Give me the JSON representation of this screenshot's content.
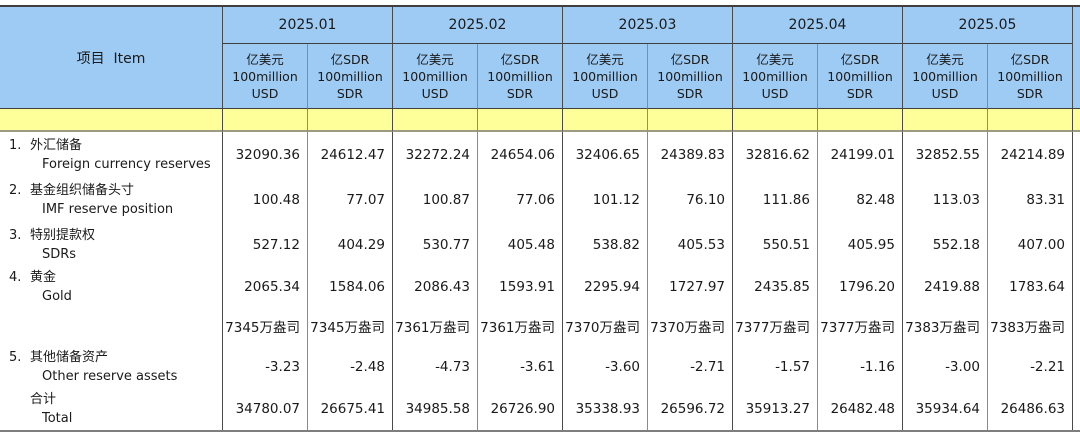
{
  "header": {
    "item": "项目  Item",
    "months": [
      "2025.01",
      "2025.02",
      "2025.03",
      "2025.04",
      "2025.05"
    ],
    "usd_unit": "亿美元\n100million\nUSD",
    "sdr_unit": "亿SDR\n100million\nSDR"
  },
  "rows": [
    {
      "no": "1.",
      "cn": "外汇储备",
      "en": "Foreign currency reserves",
      "values": [
        "32090.36",
        "24612.47",
        "32272.24",
        "24654.06",
        "32406.65",
        "24389.83",
        "32816.62",
        "24199.01",
        "32852.55",
        "24214.89"
      ]
    },
    {
      "no": "2.",
      "cn": "基金组织储备头寸",
      "en": "IMF reserve position",
      "values": [
        "100.48",
        "77.07",
        "100.87",
        "77.06",
        "101.12",
        "76.10",
        "111.86",
        "82.48",
        "113.03",
        "83.31"
      ]
    },
    {
      "no": "3.",
      "cn": "特别提款权",
      "en": "SDRs",
      "values": [
        "527.12",
        "404.29",
        "530.77",
        "405.48",
        "538.82",
        "405.53",
        "550.51",
        "405.95",
        "552.18",
        "407.00"
      ]
    },
    {
      "no": "4.",
      "cn": "黄金",
      "en": "Gold",
      "values": [
        "2065.34",
        "1584.06",
        "2086.43",
        "1593.91",
        "2295.94",
        "1727.97",
        "2435.85",
        "1796.20",
        "2419.88",
        "1783.64"
      ]
    },
    {
      "no": "",
      "cn": "",
      "en": "",
      "values": [
        "7345万盎司",
        "7345万盎司",
        "7361万盎司",
        "7361万盎司",
        "7370万盎司",
        "7370万盎司",
        "7377万盎司",
        "7377万盎司",
        "7383万盎司",
        "7383万盎司"
      ]
    },
    {
      "no": "5.",
      "cn": "其他储备资产",
      "en": "Other reserve assets",
      "values": [
        "-3.23",
        "-2.48",
        "-4.73",
        "-3.61",
        "-3.60",
        "-2.71",
        "-1.57",
        "-1.16",
        "-3.00",
        "-2.21"
      ]
    },
    {
      "no": "",
      "cn": "合计",
      "en": "Total",
      "values": [
        "34780.07",
        "26675.41",
        "34985.58",
        "26726.90",
        "35338.93",
        "26596.72",
        "35913.27",
        "26482.48",
        "35934.64",
        "26486.63"
      ]
    }
  ],
  "colors": {
    "header_blue": "#9ecbf3",
    "band_yellow": "#ffff99",
    "grid_dark": "#4a4a4a",
    "grid_light": "#8b8b8b"
  }
}
